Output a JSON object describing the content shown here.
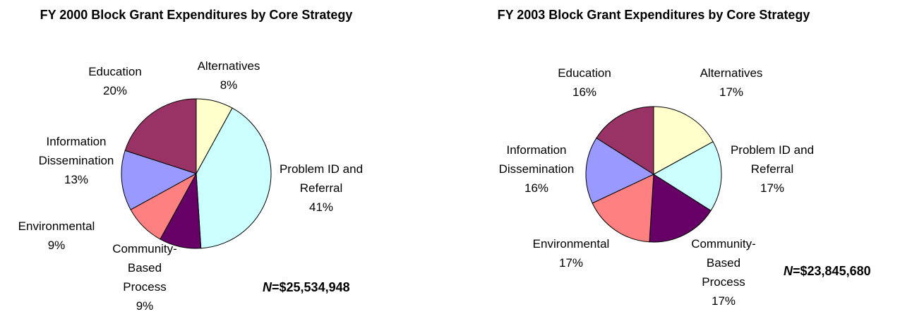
{
  "chart_data": [
    {
      "type": "pie",
      "title": "FY 2000 Block Grant Expenditures by Core Strategy",
      "categories": [
        "Alternatives",
        "Problem ID and Referral",
        "Community-Based Process",
        "Environmental",
        "Information Dissemination",
        "Education"
      ],
      "values": [
        8,
        41,
        9,
        9,
        13,
        20
      ],
      "value_labels": [
        "8%",
        "41%",
        "9%",
        "9%",
        "13%",
        "20%"
      ],
      "colors": [
        "#ffffcc",
        "#ccffff",
        "#660066",
        "#ff8080",
        "#9999ff",
        "#993366"
      ],
      "annotation": {
        "variable": "N",
        "value": "=$25,534,948"
      }
    },
    {
      "type": "pie",
      "title": "FY 2003 Block Grant Expenditures by Core Strategy",
      "categories": [
        "Alternatives",
        "Problem ID and Referral",
        "Community-Based Process",
        "Environmental",
        "Information Dissemination",
        "Education"
      ],
      "values": [
        17,
        17,
        17,
        17,
        16,
        16
      ],
      "value_labels": [
        "17%",
        "17%",
        "17%",
        "17%",
        "16%",
        "16%"
      ],
      "colors": [
        "#ffffcc",
        "#ccffff",
        "#660066",
        "#ff8080",
        "#9999ff",
        "#993366"
      ],
      "annotation": {
        "variable": "N",
        "value": "=$23,845,680"
      }
    }
  ]
}
